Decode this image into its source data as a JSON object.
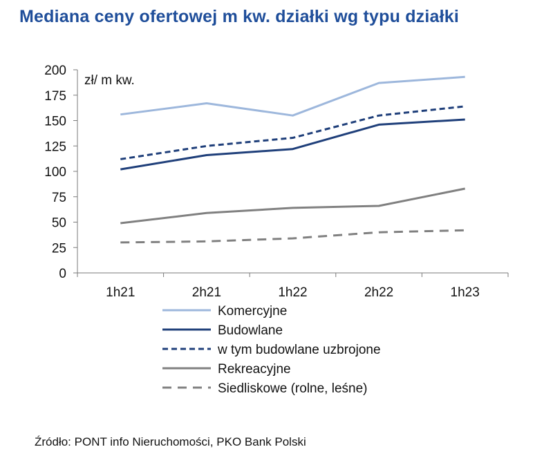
{
  "title": "Mediana ceny ofertowej m kw. działki wg typu działki",
  "source": "Źródło: PONT info Nieruchomości, PKO Bank Polski",
  "chart_data": {
    "type": "line",
    "title": "Mediana ceny ofertowej m kw. działki wg typu działki",
    "unit_label": "zł/ m kw.",
    "xlabel": "",
    "ylabel": "",
    "ylim": [
      0,
      200
    ],
    "yticks": [
      0,
      25,
      50,
      75,
      100,
      125,
      150,
      175,
      200
    ],
    "grid": false,
    "legend_position": "bottom",
    "categories": [
      "1h21",
      "2h21",
      "1h22",
      "2h22",
      "1h23"
    ],
    "series": [
      {
        "name": "Komercyjne",
        "values": [
          156,
          167,
          155,
          187,
          193
        ],
        "color": "#9db7dc",
        "dash": "solid"
      },
      {
        "name": "Budowlane",
        "values": [
          102,
          116,
          122,
          146,
          151
        ],
        "color": "#1f3f7a",
        "dash": "solid"
      },
      {
        "name": "w tym budowlane uzbrojone",
        "values": [
          112,
          125,
          133,
          155,
          164
        ],
        "color": "#1f3f7a",
        "dash": "dashed"
      },
      {
        "name": "Rekreacyjne",
        "values": [
          49,
          59,
          64,
          66,
          83
        ],
        "color": "#808080",
        "dash": "solid"
      },
      {
        "name": "Siedliskowe (rolne, leśne)",
        "values": [
          30,
          31,
          34,
          40,
          42
        ],
        "color": "#808080",
        "dash": "dashed"
      }
    ]
  }
}
